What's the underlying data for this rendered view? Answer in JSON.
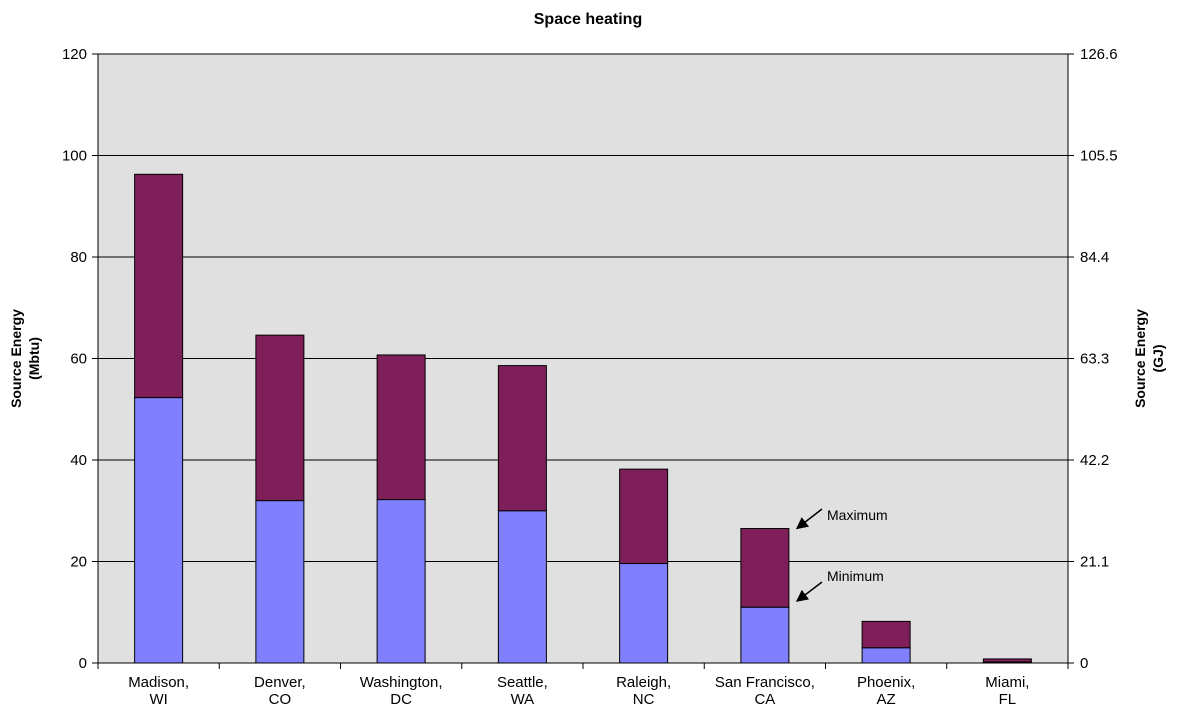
{
  "chart_data": {
    "type": "bar",
    "stacked": true,
    "title": "Space heating",
    "ylabel_left": [
      "Source Energy",
      "(Mbtu)"
    ],
    "ylabel_right": [
      "Source Energy",
      "(GJ)"
    ],
    "ylim": [
      0,
      120
    ],
    "yticks_left": [
      "0",
      "20",
      "40",
      "60",
      "80",
      "100",
      "120"
    ],
    "yticks_right": [
      "0",
      "21.1",
      "42.2",
      "63.3",
      "84.4",
      "105.5",
      "126.6"
    ],
    "categories": [
      [
        "Madison,",
        "WI"
      ],
      [
        "Denver,",
        "CO"
      ],
      [
        "Washington,",
        "DC"
      ],
      [
        "Seattle,",
        "WA"
      ],
      [
        "Raleigh,",
        "NC"
      ],
      [
        "San Francisco,",
        "CA"
      ],
      [
        "Phoenix,",
        "AZ"
      ],
      [
        "Miami,",
        "FL"
      ]
    ],
    "series": [
      {
        "name": "Minimum",
        "color": "#8080ff",
        "values": [
          52.3,
          32.0,
          32.2,
          30.0,
          19.6,
          11.0,
          3.0,
          0.2
        ]
      },
      {
        "name": "Maximum",
        "color": "#7f1f5a",
        "values": [
          96.3,
          64.6,
          60.7,
          58.6,
          38.2,
          26.5,
          8.2,
          0.8
        ]
      }
    ],
    "grid": true,
    "annotations": [
      {
        "text": "Maximum",
        "target": "San Francisco, CA maximum"
      },
      {
        "text": "Minimum",
        "target": "San Francisco, CA minimum"
      }
    ]
  }
}
